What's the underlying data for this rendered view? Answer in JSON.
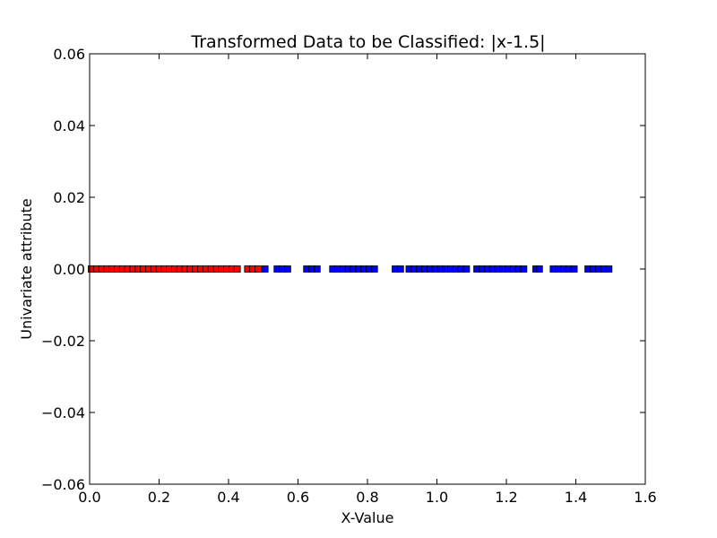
{
  "chart_data": {
    "type": "scatter",
    "title": "Transformed Data to be Classified: |x-1.5|",
    "xlabel": "X-Value",
    "ylabel": "Univariate attribute",
    "xlim": [
      0.0,
      1.6
    ],
    "ylim": [
      -0.06,
      0.06
    ],
    "grid": false,
    "legend": "none",
    "x_tick_labels": [
      "0.0",
      "0.2",
      "0.4",
      "0.6",
      "0.8",
      "1.0",
      "1.2",
      "1.4",
      "1.6"
    ],
    "y_tick_labels": [
      "0.06",
      "0.04",
      "0.02",
      "0.00",
      "−0.02",
      "−0.04",
      "−0.06"
    ],
    "marker": "square",
    "series": [
      {
        "color": "#ff0000",
        "x": [
          0.005,
          0.02,
          0.035,
          0.05,
          0.065,
          0.08,
          0.095,
          0.11,
          0.125,
          0.14,
          0.155,
          0.17,
          0.185,
          0.2,
          0.215,
          0.23,
          0.245,
          0.26,
          0.275,
          0.29,
          0.305,
          0.32,
          0.335,
          0.35,
          0.365,
          0.38,
          0.395,
          0.41,
          0.425,
          0.455,
          0.47,
          0.485
        ],
        "y": [
          0,
          0,
          0,
          0,
          0,
          0,
          0,
          0,
          0,
          0,
          0,
          0,
          0,
          0,
          0,
          0,
          0,
          0,
          0,
          0,
          0,
          0,
          0,
          0,
          0,
          0,
          0,
          0,
          0,
          0,
          0,
          0
        ]
      },
      {
        "color": "#0000ff",
        "x": [
          0.505,
          0.54,
          0.555,
          0.57,
          0.625,
          0.64,
          0.655,
          0.7,
          0.715,
          0.73,
          0.745,
          0.76,
          0.775,
          0.79,
          0.805,
          0.82,
          0.88,
          0.895,
          0.92,
          0.935,
          0.95,
          0.965,
          0.98,
          0.995,
          1.01,
          1.025,
          1.04,
          1.055,
          1.07,
          1.085,
          1.115,
          1.13,
          1.145,
          1.16,
          1.175,
          1.19,
          1.205,
          1.22,
          1.235,
          1.25,
          1.285,
          1.295,
          1.335,
          1.35,
          1.365,
          1.38,
          1.395,
          1.435,
          1.45,
          1.465,
          1.48,
          1.495
        ],
        "y": [
          0,
          0,
          0,
          0,
          0,
          0,
          0,
          0,
          0,
          0,
          0,
          0,
          0,
          0,
          0,
          0,
          0,
          0,
          0,
          0,
          0,
          0,
          0,
          0,
          0,
          0,
          0,
          0,
          0,
          0,
          0,
          0,
          0,
          0,
          0,
          0,
          0,
          0,
          0,
          0,
          0,
          0,
          0,
          0,
          0,
          0,
          0,
          0,
          0,
          0,
          0,
          0
        ]
      }
    ]
  }
}
